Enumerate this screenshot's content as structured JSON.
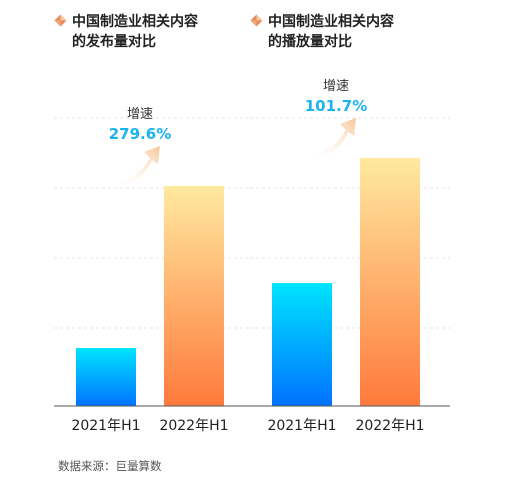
{
  "colors": {
    "bar_2021_top": "#00e5ff",
    "bar_2021_bottom": "#0072ff",
    "bar_2022_top": "#ffe9a0",
    "bar_2022_bottom": "#ff7a3c",
    "growth_value": "#1bb4f0",
    "icon_left": "#e8875a",
    "icon_right": "#f5c9a8"
  },
  "source": "数据来源：巨量算数",
  "chart_data": [
    {
      "type": "bar",
      "title": "中国制造业相关内容的发布量对比",
      "title_lines": [
        "中国制造业相关内容",
        "的发布量对比"
      ],
      "categories": [
        "2021年H1",
        "2022年H1"
      ],
      "values": [
        1,
        3.796
      ],
      "growth": {
        "label": "增速",
        "value": "279.6%"
      },
      "grid": true,
      "icon": "diamond-icon"
    },
    {
      "type": "bar",
      "title": "中国制造业相关内容的播放量对比",
      "title_lines": [
        "中国制造业相关内容",
        "的播放量对比"
      ],
      "categories": [
        "2021年H1",
        "2022年H1"
      ],
      "values": [
        1,
        2.017
      ],
      "growth": {
        "label": "增速",
        "value": "101.7%"
      },
      "grid": true,
      "icon": "diamond-icon"
    }
  ]
}
